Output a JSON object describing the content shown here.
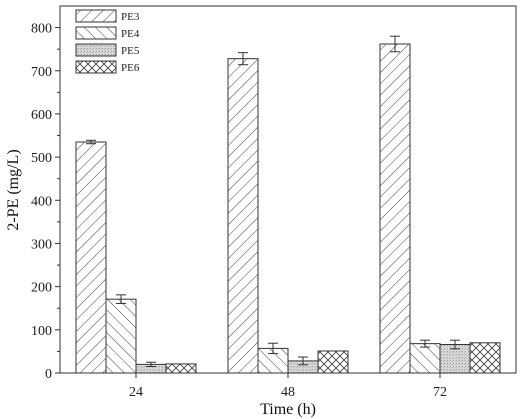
{
  "chart_data": {
    "type": "bar",
    "title": "",
    "xlabel": "Time (h)",
    "ylabel": "2-PE (mg/L)",
    "categories": [
      "24",
      "48",
      "72"
    ],
    "ylim": [
      0,
      850
    ],
    "yticks": [
      0,
      100,
      200,
      300,
      400,
      500,
      600,
      700,
      800
    ],
    "grid": false,
    "legend_position": "top-left",
    "series": [
      {
        "name": "PE3",
        "pattern": "diagonal-forward",
        "values": [
          535,
          728,
          762
        ],
        "errors": [
          4,
          14,
          18
        ]
      },
      {
        "name": "PE4",
        "pattern": "diagonal-backward",
        "values": [
          171,
          57,
          68
        ],
        "errors": [
          10,
          12,
          8
        ]
      },
      {
        "name": "PE5",
        "pattern": "dotted-gray",
        "values": [
          20,
          28,
          66
        ],
        "errors": [
          5,
          9,
          10
        ]
      },
      {
        "name": "PE6",
        "pattern": "crosshatch",
        "values": [
          21,
          51,
          70
        ],
        "errors": [
          0,
          0,
          0
        ]
      }
    ]
  }
}
